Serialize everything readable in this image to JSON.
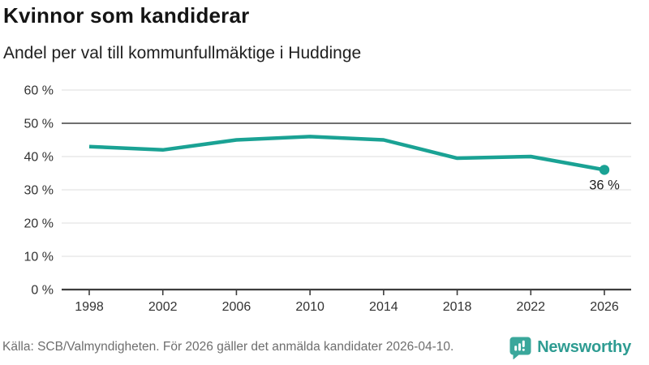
{
  "header": {
    "title": "Kvinnor som kandiderar",
    "subtitle": "Andel per val till kommunfullmäktige i Huddinge"
  },
  "chart_data": {
    "type": "line",
    "x": [
      1998,
      2002,
      2006,
      2010,
      2014,
      2018,
      2022,
      2026
    ],
    "xtick_labels": [
      "1998",
      "2002",
      "2006",
      "2010",
      "2014",
      "2018",
      "2022",
      "2026"
    ],
    "values": [
      43,
      42,
      45,
      46,
      45,
      39.5,
      40,
      36
    ],
    "title": "Kvinnor som kandiderar",
    "subtitle": "Andel per val till kommunfullmäktige i Huddinge",
    "ylim": [
      0,
      60
    ],
    "ytick_labels": [
      "0 %",
      "10 %",
      "20 %",
      "30 %",
      "40 %",
      "50 %",
      "60 %"
    ],
    "ytick_values": [
      0,
      10,
      20,
      30,
      40,
      50,
      60
    ],
    "emphasized_gridline": 50,
    "grid": true,
    "legend": "none",
    "end_label": "36 %",
    "colors": {
      "line": "#1aa294",
      "dot": "#1aa294",
      "grid_light": "#e4e4e4",
      "grid_emphasis": "#6f6f6f",
      "axis": "#3d3d3d",
      "tick_text": "#333333",
      "end_label_text": "#1f1f1f"
    }
  },
  "footer": {
    "source": "Källa: SCB/Valmyndigheten. För 2026 gäller det anmälda kandidater 2026-04-10.",
    "brand": "Newsworthy",
    "brand_color": "#2e9c92",
    "logo_icon": "bar-chart-speech-bubble-icon"
  }
}
